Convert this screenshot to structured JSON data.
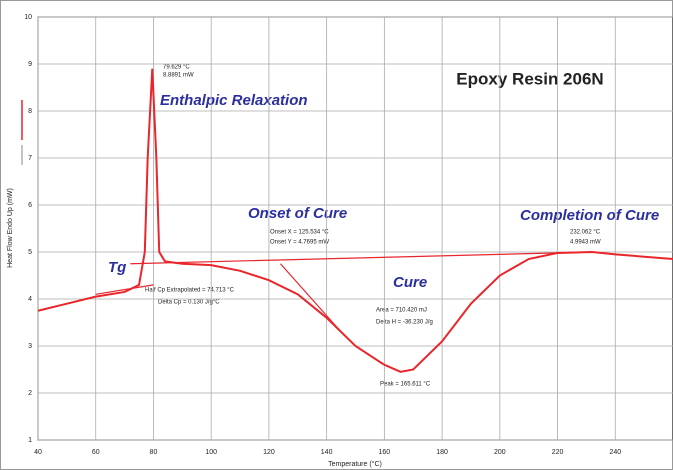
{
  "chart_data": {
    "type": "line",
    "title": "Epoxy Resin 206N",
    "x_label": "Temperature (°C)",
    "y_label": "Heat Flow Endo Up (mW)",
    "xlim": [
      40,
      260
    ],
    "xticks": [
      40,
      60,
      80,
      100,
      120,
      140,
      160,
      180,
      200,
      220,
      240
    ],
    "ylim": [
      1,
      10
    ],
    "yticks": [
      1,
      2,
      3,
      4,
      5,
      6,
      7,
      8,
      9,
      10
    ],
    "grid": true,
    "series": [
      {
        "color": "#e8262b",
        "x": [
          40,
          50,
          60,
          70,
          75,
          77,
          78,
          79.6,
          81,
          82,
          84,
          90,
          100,
          110,
          120,
          130,
          140,
          150,
          160,
          165.6,
          170,
          180,
          190,
          200,
          210,
          220,
          232,
          240,
          250,
          260
        ],
        "values": [
          3.75,
          3.9,
          4.05,
          4.15,
          4.3,
          5.0,
          7.0,
          8.9,
          7.0,
          5.0,
          4.8,
          4.75,
          4.72,
          4.6,
          4.4,
          4.1,
          3.6,
          3.0,
          2.6,
          2.45,
          2.5,
          3.1,
          3.9,
          4.5,
          4.85,
          4.98,
          5.0,
          4.95,
          4.9,
          4.85
        ]
      },
      {
        "color": "#e8262b",
        "x": [
          72,
          232
        ],
        "values": [
          4.75,
          5.0
        ]
      },
      {
        "color": "#e8262b",
        "x": [
          124,
          145
        ],
        "values": [
          4.75,
          3.3
        ]
      },
      {
        "color": "#e8262b",
        "x": [
          60,
          80
        ],
        "values": [
          4.1,
          4.3
        ]
      }
    ],
    "annotations": [
      "Enthalpic Relaxation",
      "Tg",
      "Onset of Cure",
      "Cure",
      "Completion of Cure",
      "79.629 °C",
      "8.8891 mW",
      "Onset X = 125.534 °C",
      "Onset Y = 4.7695 mW",
      "Area = 710.420 mJ",
      "Delta H = -36.230 J/g",
      "Peak = 165.611 °C",
      "232.062 °C",
      "4.9943 mW",
      "Half Cp Extrapolated = 74.713 °C",
      "Delta Cp = 0.130 J/g°C"
    ]
  }
}
